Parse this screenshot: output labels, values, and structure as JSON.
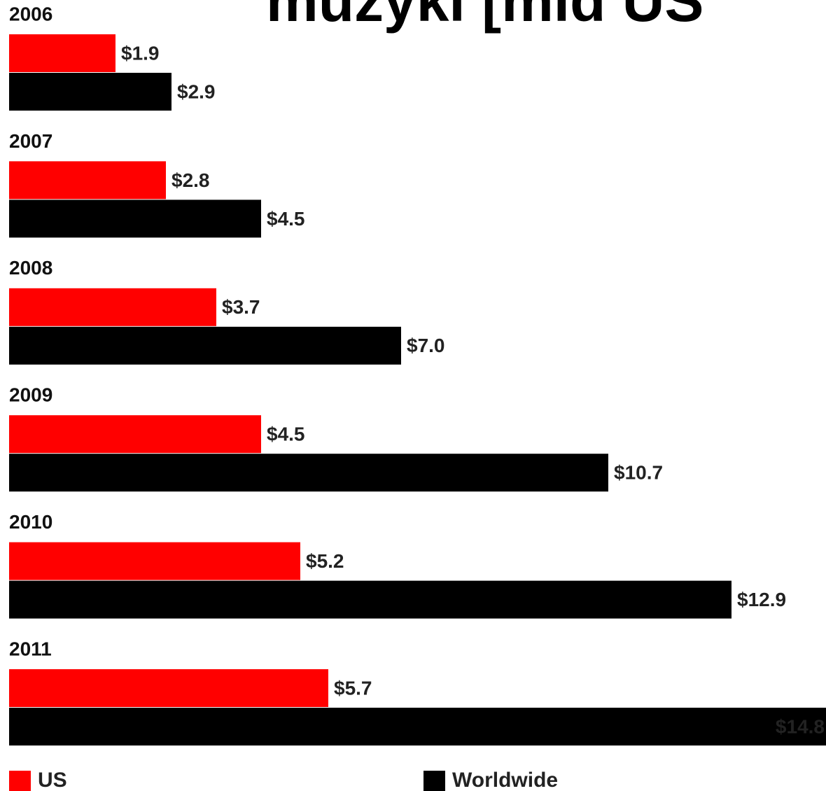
{
  "chart_data": {
    "type": "bar",
    "orientation": "horizontal",
    "title": "muzyki [mld US",
    "categories": [
      "2006",
      "2007",
      "2008",
      "2009",
      "2010",
      "2011"
    ],
    "series": [
      {
        "name": "US",
        "color": "#ff0000",
        "values": [
          1.9,
          2.8,
          3.7,
          4.5,
          5.2,
          5.7
        ],
        "value_labels": [
          "$1.9",
          "$2.8",
          "$3.7",
          "$4.5",
          "$5.2",
          "$5.7"
        ]
      },
      {
        "name": "Worldwide",
        "color": "#000000",
        "values": [
          2.9,
          4.5,
          7.0,
          10.7,
          12.9,
          14.8
        ],
        "value_labels": [
          "$2.9",
          "$4.5",
          "$7.0",
          "$10.7",
          "$12.9",
          "$14.8"
        ]
      }
    ],
    "xlim": [
      0,
      14.6
    ]
  }
}
